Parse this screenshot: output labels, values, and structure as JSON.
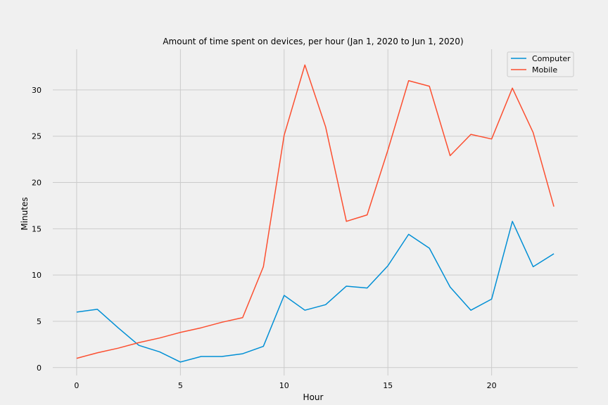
{
  "chart_data": {
    "type": "line",
    "title": "Amount of time spent on devices, per hour (Jan 1, 2020 to Jun 1, 2020)",
    "xlabel": "Hour",
    "ylabel": "Minutes",
    "xlim": [
      -1.15,
      24.15
    ],
    "ylim": [
      -0.85,
      34.4
    ],
    "xticks": [
      0,
      5,
      10,
      15,
      20
    ],
    "yticks": [
      0,
      5,
      10,
      15,
      20,
      25,
      30
    ],
    "grid": true,
    "legend_position": "top-right",
    "x": [
      0,
      1,
      2,
      3,
      4,
      5,
      6,
      7,
      8,
      9,
      10,
      11,
      12,
      13,
      14,
      15,
      16,
      17,
      18,
      19,
      20,
      21,
      22,
      23
    ],
    "series": [
      {
        "name": "Computer",
        "color": "#008fd5",
        "values": [
          6.0,
          6.3,
          4.3,
          2.4,
          1.7,
          0.6,
          1.2,
          1.2,
          1.5,
          2.3,
          7.8,
          6.2,
          6.8,
          8.8,
          8.6,
          11.0,
          14.4,
          12.9,
          8.7,
          6.2,
          7.4,
          15.8,
          10.9,
          12.3
        ]
      },
      {
        "name": "Mobile",
        "color": "#fc4f30",
        "values": [
          1.0,
          1.6,
          2.1,
          2.7,
          3.2,
          3.8,
          4.3,
          4.9,
          5.4,
          10.9,
          25.1,
          32.7,
          26.0,
          15.8,
          16.5,
          23.5,
          31.0,
          30.4,
          22.9,
          25.2,
          24.7,
          30.2,
          25.4,
          17.4
        ]
      }
    ]
  }
}
